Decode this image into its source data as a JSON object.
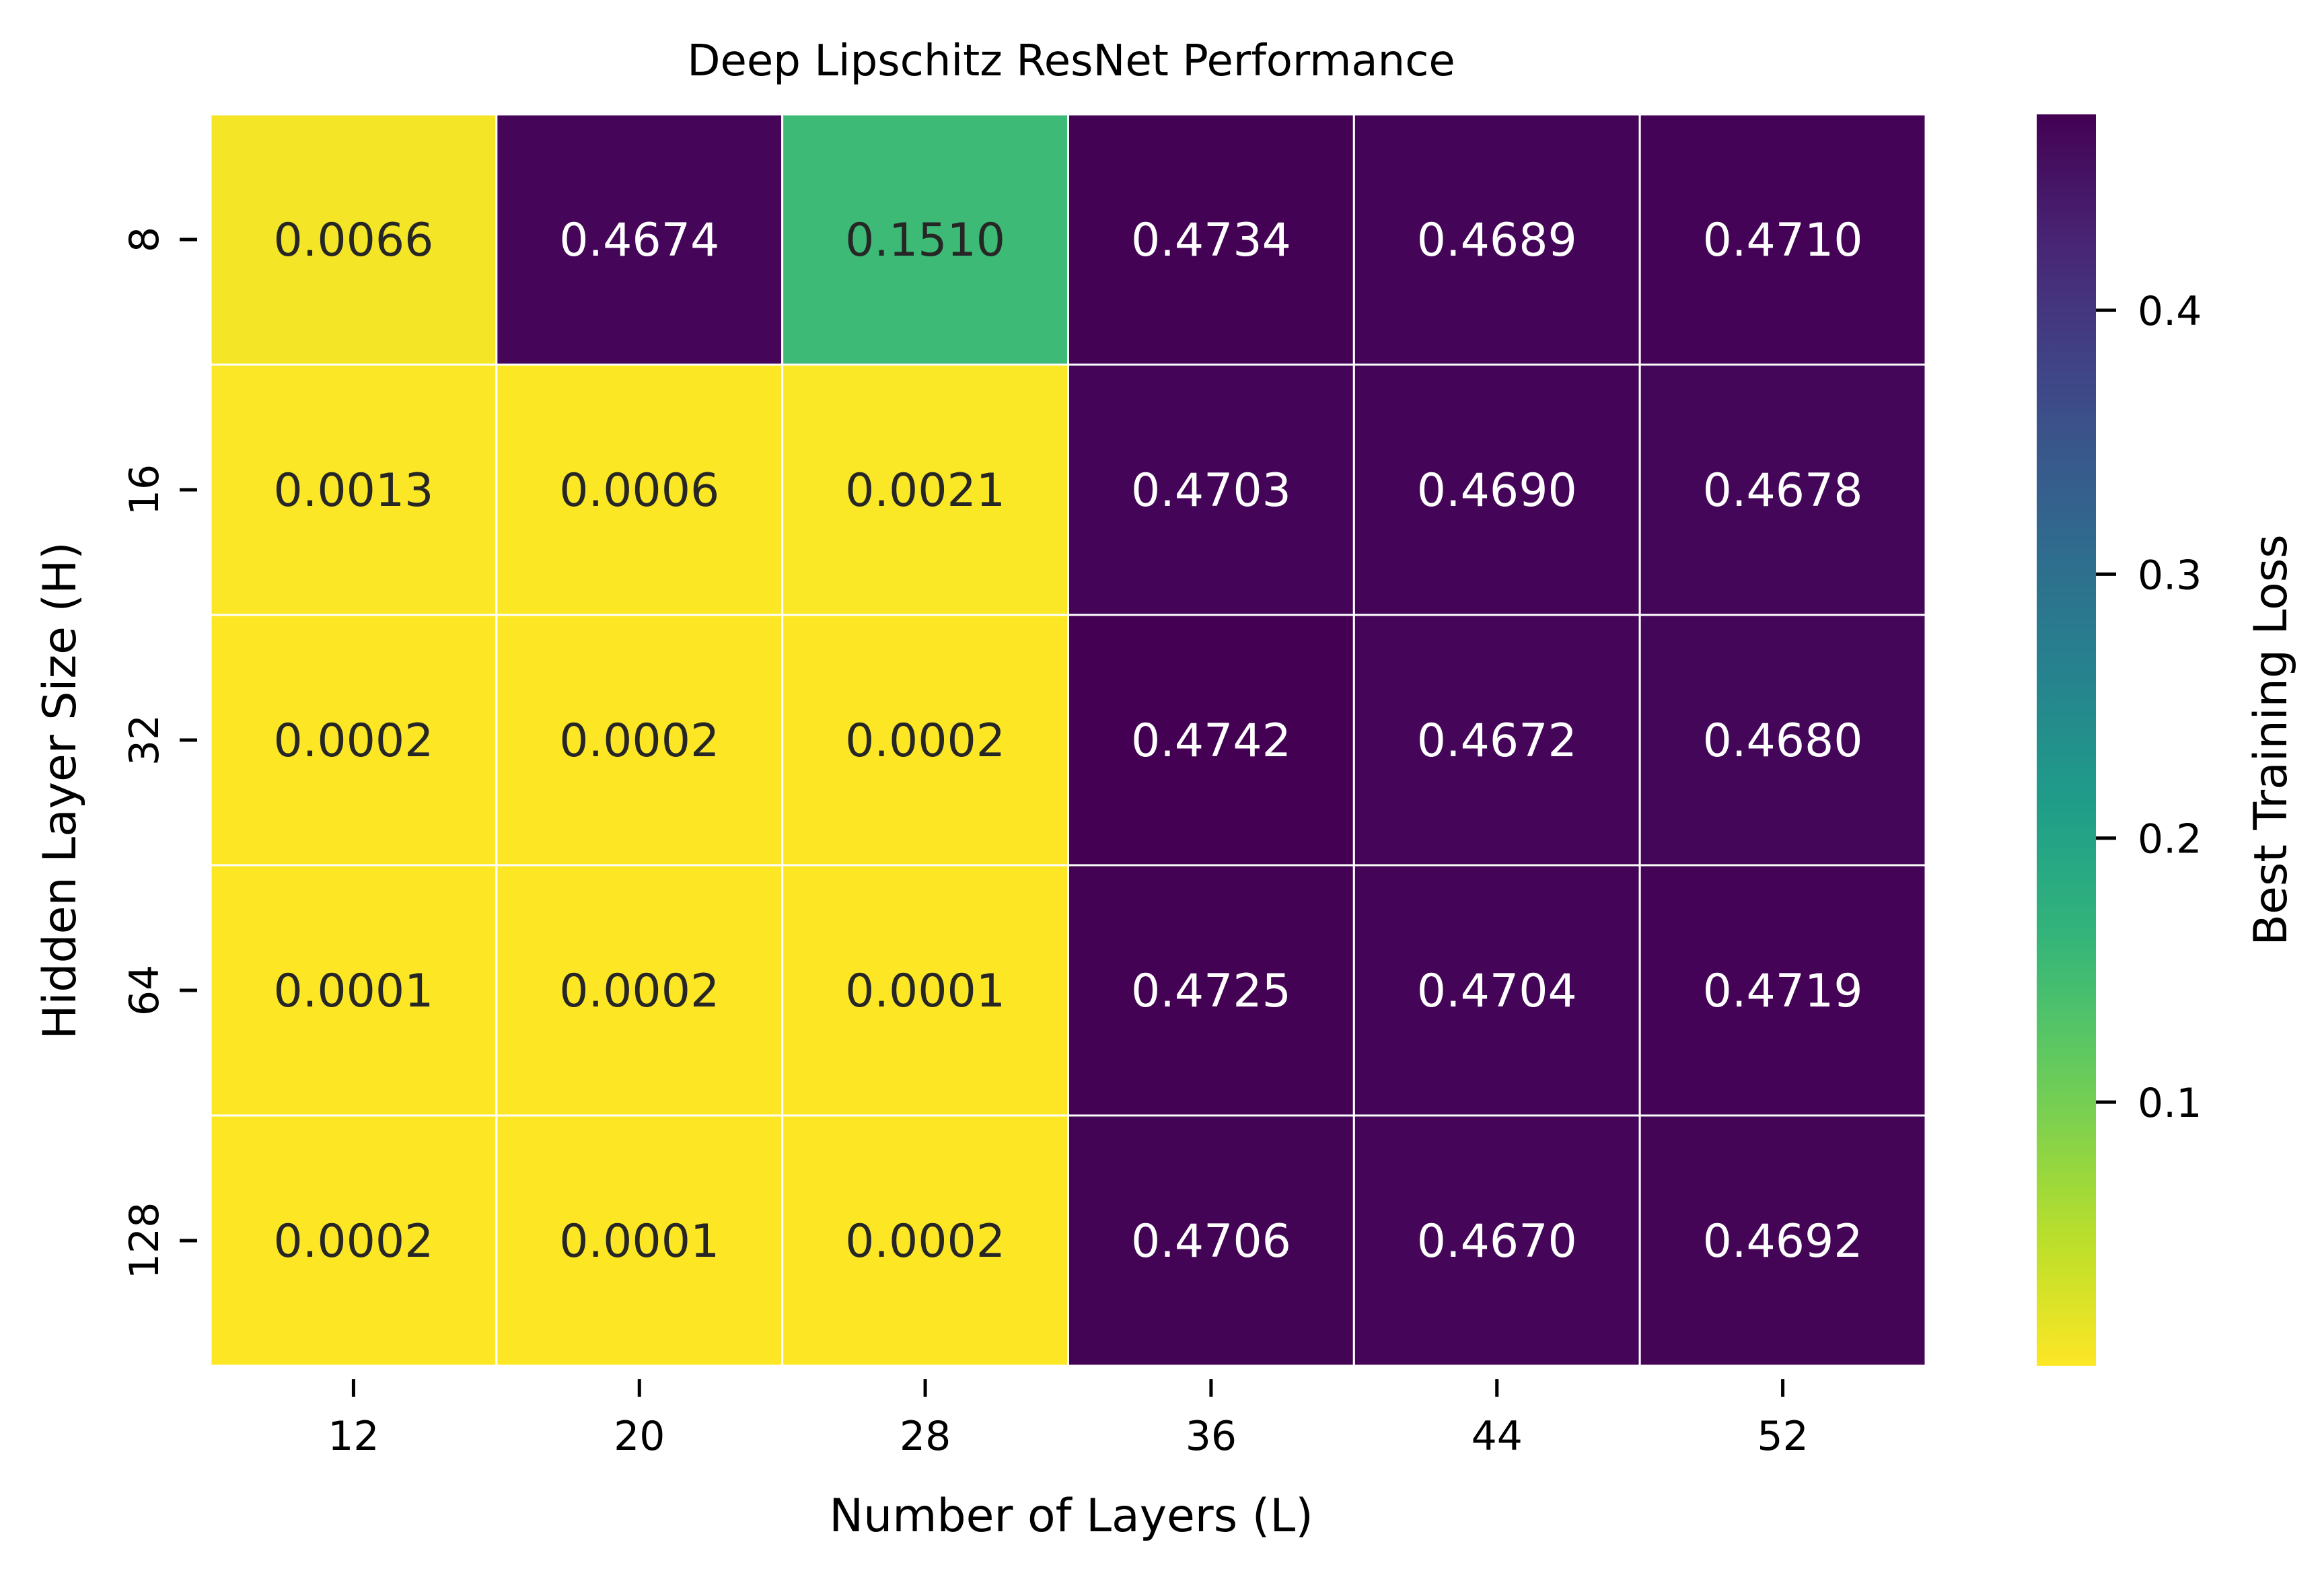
{
  "chart_data": {
    "type": "heatmap",
    "title": "Deep Lipschitz ResNet Performance",
    "xlabel": "Number of Layers (L)",
    "ylabel": "Hidden Layer Size (H)",
    "x_categories": [
      "12",
      "20",
      "28",
      "36",
      "44",
      "52"
    ],
    "y_categories": [
      "8",
      "16",
      "32",
      "64",
      "128"
    ],
    "values": [
      [
        0.0066,
        0.4674,
        0.151,
        0.4734,
        0.4689,
        0.471
      ],
      [
        0.0013,
        0.0006,
        0.0021,
        0.4703,
        0.469,
        0.4678
      ],
      [
        0.0002,
        0.0002,
        0.0002,
        0.4742,
        0.4672,
        0.468
      ],
      [
        0.0001,
        0.0002,
        0.0001,
        0.4725,
        0.4704,
        0.4719
      ],
      [
        0.0002,
        0.0001,
        0.0002,
        0.4706,
        0.467,
        0.4692
      ]
    ],
    "value_format": "4 decimals",
    "colormap": "viridis_r",
    "colorbar": {
      "label": "Best Training Loss",
      "ticks": [
        "0.1",
        "0.2",
        "0.3",
        "0.4"
      ],
      "range": [
        0.0001,
        0.4742
      ]
    },
    "grid": true,
    "cell_separator_color": "#ffffff",
    "annotation_colors": {
      "dark": "#262626",
      "light": "#ffffff"
    }
  }
}
